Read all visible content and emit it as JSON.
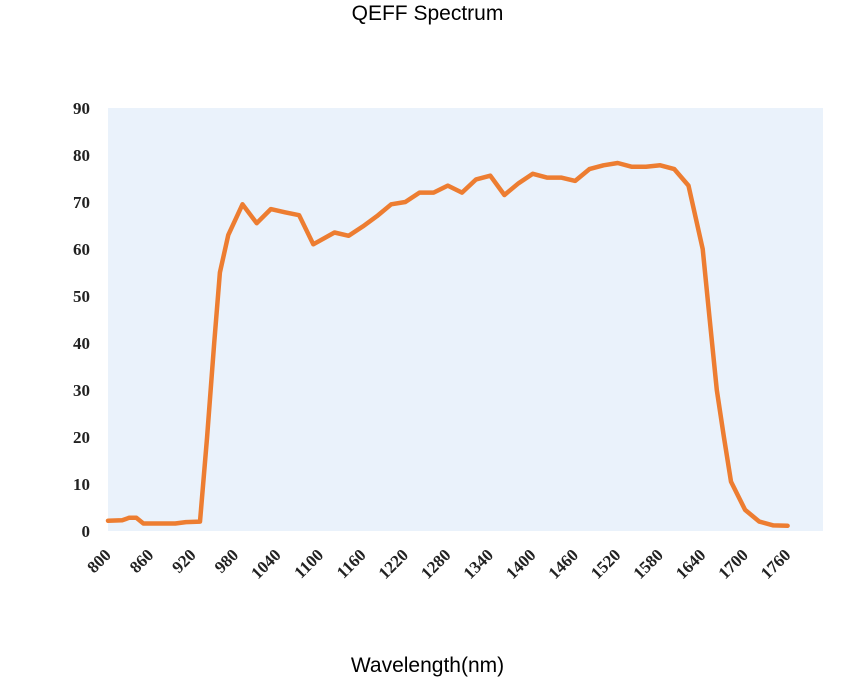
{
  "title": "QEFF Spectrum",
  "chart_data": {
    "type": "line",
    "title": "QEFF Spectrum",
    "xlabel": "Wavelength(nm)",
    "ylabel": "",
    "xlim": [
      800,
      1810
    ],
    "ylim": [
      0,
      90
    ],
    "x_ticks": [
      800,
      860,
      920,
      980,
      1040,
      1100,
      1160,
      1220,
      1280,
      1340,
      1400,
      1460,
      1520,
      1580,
      1640,
      1700,
      1760
    ],
    "x_tick_labels": [
      "800",
      "860",
      "920",
      "980",
      "1040",
      "1100",
      "1160",
      "1220",
      "1280",
      "1340",
      "1400",
      "1460",
      "1520",
      "1580",
      "1640",
      "1700",
      "1760"
    ],
    "y_ticks": [
      0,
      10,
      20,
      30,
      40,
      50,
      60,
      70,
      80,
      90
    ],
    "y_tick_labels": [
      "0",
      "10",
      "20",
      "30",
      "40",
      "50",
      "60",
      "70",
      "80",
      "90"
    ],
    "grid": false,
    "plot_background": "#eaf2fb",
    "series": [
      {
        "color": "#ed7d31",
        "points": [
          [
            800,
            2.2
          ],
          [
            820,
            2.3
          ],
          [
            830,
            2.8
          ],
          [
            840,
            2.8
          ],
          [
            850,
            1.6
          ],
          [
            880,
            1.6
          ],
          [
            895,
            1.6
          ],
          [
            910,
            1.9
          ],
          [
            930,
            2.0
          ],
          [
            940,
            20
          ],
          [
            950,
            40
          ],
          [
            958,
            55
          ],
          [
            970,
            63
          ],
          [
            990,
            69.5
          ],
          [
            1010,
            65.5
          ],
          [
            1030,
            68.5
          ],
          [
            1050,
            67.8
          ],
          [
            1070,
            67.2
          ],
          [
            1090,
            61
          ],
          [
            1120,
            63.5
          ],
          [
            1140,
            62.8
          ],
          [
            1160,
            64.8
          ],
          [
            1180,
            67
          ],
          [
            1200,
            69.5
          ],
          [
            1220,
            70
          ],
          [
            1240,
            72
          ],
          [
            1260,
            72
          ],
          [
            1280,
            73.5
          ],
          [
            1300,
            72
          ],
          [
            1320,
            74.8
          ],
          [
            1340,
            75.6
          ],
          [
            1360,
            71.5
          ],
          [
            1380,
            74
          ],
          [
            1400,
            76
          ],
          [
            1420,
            75.2
          ],
          [
            1440,
            75.2
          ],
          [
            1460,
            74.5
          ],
          [
            1480,
            77
          ],
          [
            1500,
            77.8
          ],
          [
            1520,
            78.3
          ],
          [
            1540,
            77.5
          ],
          [
            1560,
            77.5
          ],
          [
            1580,
            77.8
          ],
          [
            1600,
            77
          ],
          [
            1620,
            73.5
          ],
          [
            1640,
            60
          ],
          [
            1650,
            45
          ],
          [
            1660,
            30
          ],
          [
            1670,
            20
          ],
          [
            1680,
            10.5
          ],
          [
            1700,
            4.5
          ],
          [
            1720,
            2
          ],
          [
            1740,
            1.2
          ],
          [
            1760,
            1.1
          ]
        ]
      }
    ]
  }
}
